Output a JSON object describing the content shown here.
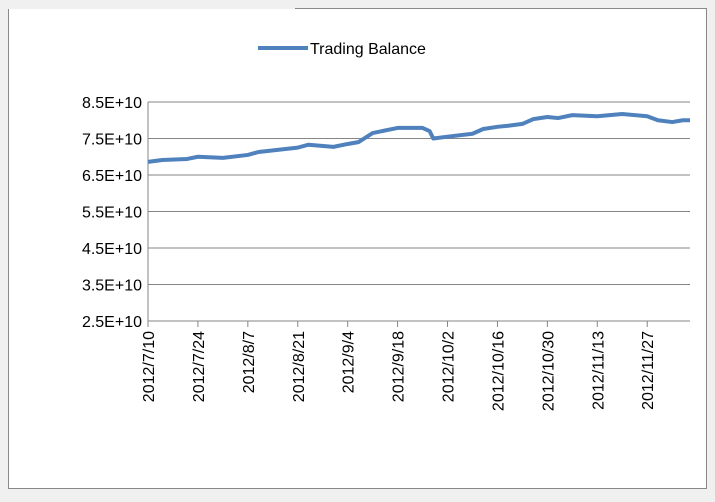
{
  "chart_data": {
    "type": "line",
    "x": [
      "2012/7/10",
      "2012/7/14",
      "2012/7/21",
      "2012/7/24",
      "2012/7/31",
      "2012/8/7",
      "2012/8/10",
      "2012/8/21",
      "2012/8/24",
      "2012/8/31",
      "2012/9/4",
      "2012/9/7",
      "2012/9/11",
      "2012/9/18",
      "2012/9/25",
      "2012/9/27",
      "2012/9/28",
      "2012/10/2",
      "2012/10/9",
      "2012/10/12",
      "2012/10/16",
      "2012/10/19",
      "2012/10/23",
      "2012/10/26",
      "2012/10/30",
      "2012/11/2",
      "2012/11/6",
      "2012/11/13",
      "2012/11/20",
      "2012/11/27",
      "2012/11/30",
      "2012/12/4",
      "2012/12/7",
      "2012/12/9"
    ],
    "series": [
      {
        "name": "Trading Balance",
        "color": "#4f81bd",
        "values": [
          68600000000,
          69100000000,
          69400000000,
          70000000000,
          69700000000,
          70500000000,
          71300000000,
          72500000000,
          73300000000,
          72700000000,
          73500000000,
          74000000000,
          76500000000,
          77900000000,
          77900000000,
          77000000000,
          75000000000,
          75500000000,
          76300000000,
          77600000000,
          78200000000,
          78500000000,
          79000000000,
          80300000000,
          80900000000,
          80600000000,
          81400000000,
          81100000000,
          81700000000,
          81100000000,
          80000000000,
          79500000000,
          80000000000,
          80000000000
        ]
      }
    ],
    "xlim": [
      "2012/7/10",
      "2012/12/9"
    ],
    "xticks": [
      "2012/7/10",
      "2012/7/24",
      "2012/8/7",
      "2012/8/21",
      "2012/9/4",
      "2012/9/18",
      "2012/10/2",
      "2012/10/16",
      "2012/10/30",
      "2012/11/13",
      "2012/11/27"
    ],
    "ylim": [
      25000000000,
      85000000000
    ],
    "yticks": [
      {
        "value": 25000000000,
        "label": "2.5E+10"
      },
      {
        "value": 35000000000,
        "label": "3.5E+10"
      },
      {
        "value": 45000000000,
        "label": "4.5E+10"
      },
      {
        "value": 55000000000,
        "label": "5.5E+10"
      },
      {
        "value": 65000000000,
        "label": "6.5E+10"
      },
      {
        "value": 75000000000,
        "label": "7.5E+10"
      },
      {
        "value": 85000000000,
        "label": "8.5E+10"
      }
    ],
    "grid": true,
    "legend": "top"
  }
}
